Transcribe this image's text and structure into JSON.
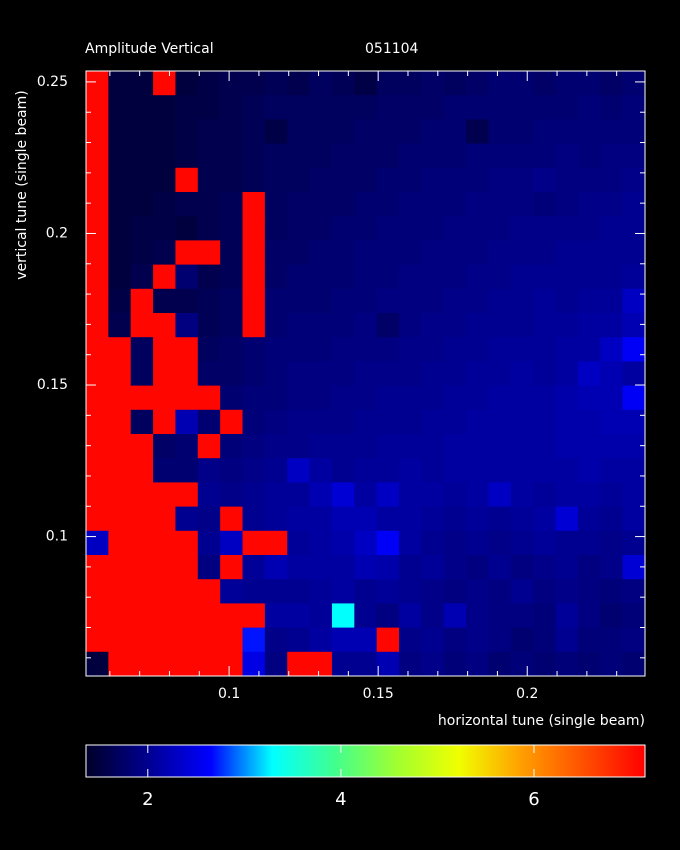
{
  "chart_data": {
    "type": "heatmap",
    "title": "Amplitude Vertical",
    "subtitle": "051104",
    "xlabel": "horizontal tune (single beam)",
    "ylabel": "vertical tune (single beam)",
    "xlim": [
      0.052,
      0.2395
    ],
    "ylim": [
      0.054,
      0.2536
    ],
    "xticks": [
      0.1,
      0.15,
      0.2
    ],
    "yticks": [
      0.1,
      0.15,
      0.2,
      0.25
    ],
    "xminorticks": [
      0.06,
      0.07,
      0.08,
      0.09,
      0.11,
      0.12,
      0.13,
      0.14,
      0.16,
      0.17,
      0.18,
      0.19,
      0.21,
      0.22,
      0.23
    ],
    "yminorticks": [
      0.06,
      0.07,
      0.08,
      0.09,
      0.11,
      0.12,
      0.13,
      0.14,
      0.16,
      0.17,
      0.18,
      0.19,
      0.21,
      0.22,
      0.23,
      0.24
    ],
    "zlim": [
      1.36,
      7.15
    ],
    "zticks": [
      2,
      4,
      6
    ],
    "colorscale": [
      [
        1.36,
        "#000028"
      ],
      [
        2.0,
        "#000090"
      ],
      [
        2.65,
        "#0000ff"
      ],
      [
        3.29,
        "#00ffff"
      ],
      [
        3.93,
        "#40ff90"
      ],
      [
        4.58,
        "#a0ff30"
      ],
      [
        5.22,
        "#f0ff00"
      ],
      [
        5.86,
        "#ffa000"
      ],
      [
        6.51,
        "#ff5000"
      ],
      [
        7.15,
        "#ff0000"
      ]
    ],
    "z": [
      [
        7.1,
        1.5,
        1.5,
        7.1,
        1.5,
        1.55,
        1.6,
        1.6,
        1.65,
        1.6,
        1.7,
        1.65,
        1.55,
        1.7,
        1.7,
        1.75,
        1.7,
        1.75,
        1.8,
        1.8,
        1.75,
        1.8,
        1.8,
        1.75,
        1.8
      ],
      [
        7.1,
        1.5,
        1.5,
        1.5,
        1.55,
        1.55,
        1.6,
        1.65,
        1.7,
        1.7,
        1.7,
        1.7,
        1.7,
        1.75,
        1.75,
        1.75,
        1.8,
        1.8,
        1.8,
        1.8,
        1.8,
        1.8,
        1.85,
        1.8,
        1.85
      ],
      [
        7.1,
        1.5,
        1.5,
        1.5,
        1.55,
        1.6,
        1.6,
        1.65,
        1.55,
        1.7,
        1.7,
        1.7,
        1.75,
        1.75,
        1.75,
        1.8,
        1.8,
        1.6,
        1.8,
        1.8,
        1.85,
        1.85,
        1.85,
        1.85,
        1.85
      ],
      [
        7.1,
        1.5,
        1.5,
        1.5,
        1.55,
        1.6,
        1.6,
        1.65,
        1.7,
        1.7,
        1.7,
        1.75,
        1.75,
        1.75,
        1.8,
        1.8,
        1.8,
        1.85,
        1.85,
        1.85,
        1.85,
        1.9,
        1.85,
        1.9,
        1.9
      ],
      [
        7.1,
        1.5,
        1.5,
        1.5,
        7.1,
        1.6,
        1.6,
        1.65,
        1.7,
        1.7,
        1.75,
        1.75,
        1.75,
        1.8,
        1.8,
        1.85,
        1.85,
        1.85,
        1.9,
        1.9,
        1.95,
        1.9,
        1.9,
        1.9,
        1.95
      ],
      [
        7.1,
        1.5,
        1.5,
        1.55,
        1.6,
        1.6,
        1.65,
        7.1,
        1.7,
        1.75,
        1.75,
        1.75,
        1.8,
        1.8,
        1.85,
        1.85,
        1.85,
        1.9,
        1.9,
        1.9,
        1.85,
        1.9,
        1.95,
        1.95,
        2.0
      ],
      [
        7.1,
        1.5,
        1.55,
        1.55,
        1.5,
        1.6,
        1.65,
        7.1,
        1.7,
        1.75,
        1.75,
        1.8,
        1.8,
        1.85,
        1.85,
        1.85,
        1.9,
        1.9,
        1.9,
        1.95,
        1.95,
        1.95,
        1.95,
        2.0,
        2.0
      ],
      [
        7.1,
        1.5,
        1.55,
        1.6,
        7.1,
        7.1,
        1.65,
        7.1,
        1.75,
        1.75,
        1.8,
        1.8,
        1.85,
        1.85,
        1.85,
        1.9,
        1.9,
        1.9,
        1.95,
        1.95,
        1.95,
        2.0,
        2.0,
        2.0,
        2.0
      ],
      [
        7.1,
        1.5,
        1.6,
        7.1,
        1.8,
        1.6,
        1.65,
        7.1,
        1.75,
        1.8,
        1.8,
        1.8,
        1.85,
        1.85,
        1.9,
        1.9,
        1.9,
        1.95,
        1.95,
        2.0,
        2.0,
        2.0,
        2.0,
        2.0,
        2.05
      ],
      [
        7.1,
        1.55,
        7.1,
        1.6,
        1.6,
        1.65,
        1.7,
        7.1,
        1.8,
        1.8,
        1.8,
        1.85,
        1.85,
        1.9,
        1.9,
        1.9,
        1.95,
        1.95,
        2.0,
        2.0,
        2.05,
        2.0,
        2.05,
        2.05,
        2.3
      ],
      [
        7.1,
        1.6,
        7.1,
        7.1,
        1.9,
        1.65,
        1.7,
        7.1,
        1.8,
        1.85,
        1.85,
        1.85,
        1.9,
        1.75,
        1.9,
        1.95,
        1.95,
        2.0,
        2.0,
        2.0,
        2.05,
        2.05,
        2.1,
        2.1,
        2.2
      ],
      [
        7.1,
        7.1,
        1.7,
        7.1,
        7.1,
        1.7,
        1.75,
        1.8,
        1.85,
        1.85,
        1.85,
        1.9,
        1.9,
        1.9,
        1.95,
        1.95,
        2.0,
        2.0,
        2.05,
        2.05,
        2.05,
        2.1,
        2.1,
        2.3,
        2.6
      ],
      [
        7.1,
        7.1,
        1.7,
        7.1,
        7.1,
        1.75,
        1.75,
        1.8,
        1.85,
        1.9,
        1.9,
        1.9,
        1.95,
        1.95,
        1.95,
        2.0,
        2.0,
        2.05,
        2.05,
        2.1,
        2.05,
        2.1,
        2.3,
        2.2,
        2.1
      ],
      [
        7.1,
        7.1,
        7.1,
        7.1,
        7.1,
        7.1,
        1.8,
        1.85,
        1.85,
        1.9,
        1.9,
        1.95,
        1.95,
        2.0,
        2.0,
        2.0,
        2.05,
        2.05,
        2.1,
        2.1,
        2.1,
        2.15,
        2.2,
        2.2,
        2.6
      ],
      [
        7.1,
        7.1,
        1.7,
        7.1,
        2.2,
        1.8,
        7.1,
        1.85,
        1.9,
        1.95,
        1.95,
        1.95,
        2.0,
        2.0,
        2.0,
        2.05,
        2.05,
        2.1,
        2.1,
        2.1,
        2.1,
        2.15,
        2.15,
        2.2,
        2.2
      ],
      [
        7.1,
        7.1,
        7.1,
        1.75,
        1.8,
        7.1,
        1.85,
        1.9,
        1.95,
        1.95,
        2.0,
        2.0,
        2.0,
        2.05,
        2.05,
        2.05,
        2.1,
        2.1,
        2.1,
        2.1,
        2.1,
        2.15,
        2.15,
        2.15,
        2.15
      ],
      [
        7.1,
        7.1,
        7.1,
        1.8,
        1.8,
        1.95,
        1.9,
        1.95,
        2.0,
        2.3,
        2.1,
        2.0,
        2.05,
        2.05,
        2.1,
        2.05,
        2.1,
        2.1,
        2.1,
        2.1,
        2.1,
        2.1,
        2.15,
        2.1,
        2.1
      ],
      [
        7.1,
        7.1,
        7.1,
        7.1,
        7.1,
        2.0,
        1.95,
        2.0,
        2.05,
        2.05,
        2.2,
        2.4,
        2.1,
        2.3,
        2.1,
        2.1,
        2.05,
        2.1,
        2.3,
        2.1,
        2.05,
        2.1,
        2.1,
        2.05,
        2.1
      ],
      [
        7.1,
        7.1,
        7.1,
        7.1,
        2.0,
        1.95,
        7.1,
        2.0,
        2.05,
        2.1,
        2.1,
        2.2,
        2.2,
        2.1,
        2.1,
        2.05,
        2.0,
        2.05,
        2.0,
        2.05,
        2.1,
        2.4,
        2.05,
        2.0,
        2.1
      ],
      [
        2.3,
        7.1,
        7.1,
        7.1,
        7.1,
        2.0,
        2.3,
        7.1,
        7.1,
        2.05,
        2.1,
        2.15,
        2.3,
        2.6,
        2.1,
        2.0,
        1.95,
        2.0,
        1.95,
        2.0,
        2.05,
        2.0,
        2.0,
        1.95,
        2.0
      ],
      [
        7.1,
        7.1,
        7.1,
        7.1,
        7.1,
        1.9,
        7.1,
        2.05,
        2.2,
        2.1,
        2.1,
        2.1,
        2.2,
        2.15,
        2.0,
        2.05,
        1.95,
        1.9,
        2.0,
        1.9,
        1.95,
        2.0,
        1.9,
        1.95,
        2.4
      ],
      [
        7.1,
        7.1,
        7.1,
        7.1,
        7.1,
        7.1,
        2.05,
        2.0,
        2.0,
        2.0,
        2.05,
        2.1,
        2.0,
        2.05,
        2.0,
        1.95,
        1.9,
        1.95,
        1.9,
        2.0,
        1.9,
        1.95,
        1.9,
        1.85,
        1.9
      ],
      [
        7.1,
        7.1,
        7.1,
        7.1,
        7.1,
        7.1,
        7.1,
        7.1,
        2.1,
        2.1,
        2.05,
        3.3,
        2.0,
        1.9,
        2.1,
        1.95,
        2.2,
        1.95,
        1.9,
        1.9,
        1.85,
        2.05,
        1.9,
        1.8,
        1.85
      ],
      [
        7.1,
        7.1,
        7.1,
        7.1,
        7.1,
        7.1,
        7.1,
        2.7,
        1.95,
        2.0,
        2.1,
        2.2,
        2.2,
        7.1,
        1.95,
        2.0,
        1.9,
        1.95,
        1.9,
        1.8,
        1.85,
        2.0,
        1.85,
        1.85,
        1.9
      ],
      [
        1.5,
        7.1,
        7.1,
        7.1,
        7.1,
        7.1,
        7.1,
        2.5,
        1.9,
        7.1,
        7.1,
        2.0,
        2.0,
        2.2,
        1.9,
        1.95,
        1.85,
        1.9,
        1.8,
        1.85,
        1.8,
        1.85,
        1.8,
        1.85,
        1.8
      ]
    ]
  }
}
